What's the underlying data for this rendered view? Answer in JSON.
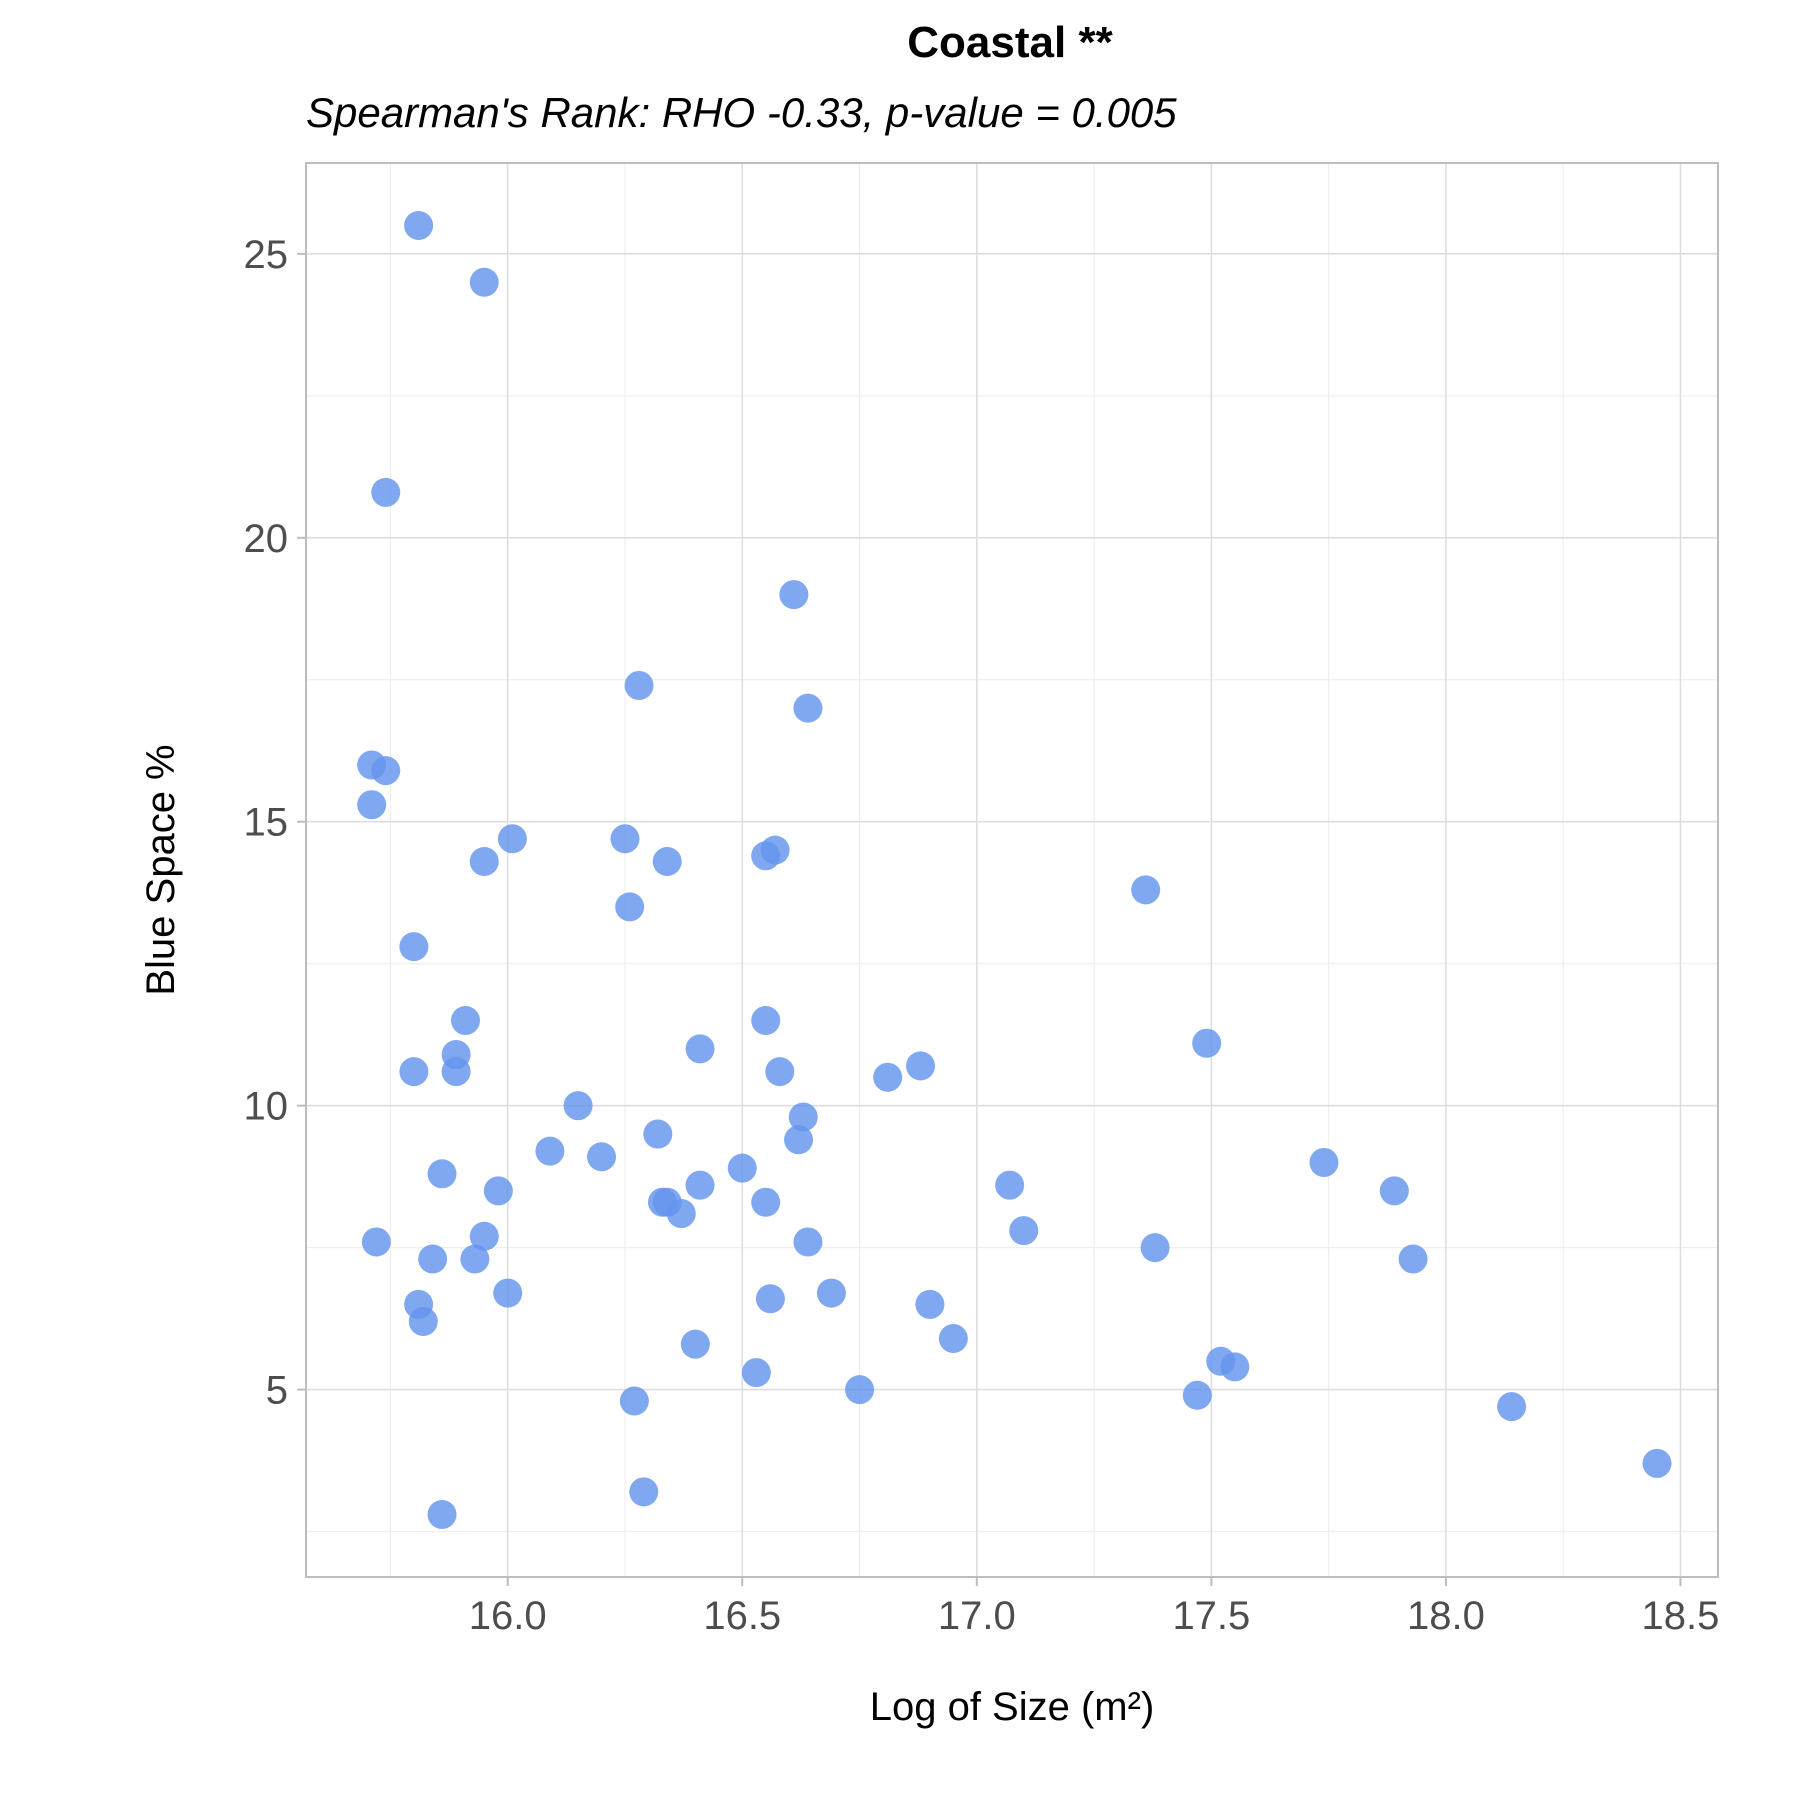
{
  "chart_data": {
    "type": "scatter",
    "title": "Coastal **",
    "subtitle": "Spearman's Rank: RHO -0.33, p-value = 0.005",
    "xlabel": "Log of Size (m²)",
    "ylabel": "Blue Space %",
    "xlim": [
      15.57,
      18.58
    ],
    "ylim": [
      1.7,
      26.6
    ],
    "x_ticks": [
      16.0,
      16.5,
      17.0,
      17.5,
      18.0,
      18.5
    ],
    "x_tick_labels": [
      "16.0",
      "16.5",
      "17.0",
      "17.5",
      "18.0",
      "18.5"
    ],
    "y_ticks": [
      5,
      10,
      15,
      20,
      25
    ],
    "y_tick_labels": [
      "5",
      "10",
      "15",
      "20",
      "25"
    ],
    "x_minor_ticks": [
      15.75,
      16.25,
      16.75,
      17.25,
      17.75,
      18.25
    ],
    "y_minor_ticks": [
      2.5,
      7.5,
      12.5,
      17.5,
      22.5
    ],
    "grid": true,
    "point_color": "#6495ED",
    "series": [
      {
        "x": [
          15.81,
          15.95,
          15.74,
          16.61,
          16.28,
          16.64,
          15.71,
          15.74,
          15.71,
          16.01,
          15.95,
          16.25,
          16.34,
          16.57,
          16.55,
          16.26,
          17.36,
          15.8,
          15.91,
          16.55,
          17.49,
          15.89,
          16.41,
          15.8,
          15.89,
          16.58,
          16.88,
          16.81,
          16.15,
          16.63,
          16.32,
          16.62,
          16.09,
          16.2,
          17.74,
          16.5,
          15.86,
          17.07,
          17.89,
          16.41,
          15.98,
          16.33,
          16.34,
          16.55,
          16.37,
          17.1,
          15.95,
          16.64,
          15.72,
          17.38,
          15.84,
          15.93,
          17.93,
          16.0,
          16.69,
          16.56,
          15.81,
          16.9,
          15.82,
          16.95,
          16.4,
          17.52,
          17.55,
          16.53,
          16.75,
          17.47,
          16.27,
          18.14,
          18.45,
          16.29,
          15.86
        ],
        "y": [
          25.5,
          24.5,
          20.8,
          19.0,
          17.4,
          17.0,
          16.0,
          15.9,
          15.3,
          14.7,
          14.3,
          14.7,
          14.3,
          14.5,
          14.4,
          13.5,
          13.8,
          12.8,
          11.5,
          11.5,
          11.1,
          10.9,
          11.0,
          10.6,
          10.6,
          10.6,
          10.7,
          10.5,
          10.0,
          9.8,
          9.5,
          9.4,
          9.2,
          9.1,
          9.0,
          8.9,
          8.8,
          8.6,
          8.5,
          8.6,
          8.5,
          8.3,
          8.3,
          8.3,
          8.1,
          7.8,
          7.7,
          7.6,
          7.6,
          7.5,
          7.3,
          7.3,
          7.3,
          6.7,
          6.7,
          6.6,
          6.5,
          6.5,
          6.2,
          5.9,
          5.8,
          5.5,
          5.4,
          5.3,
          5.0,
          4.9,
          4.8,
          4.7,
          3.7,
          3.2,
          2.8
        ]
      }
    ]
  }
}
